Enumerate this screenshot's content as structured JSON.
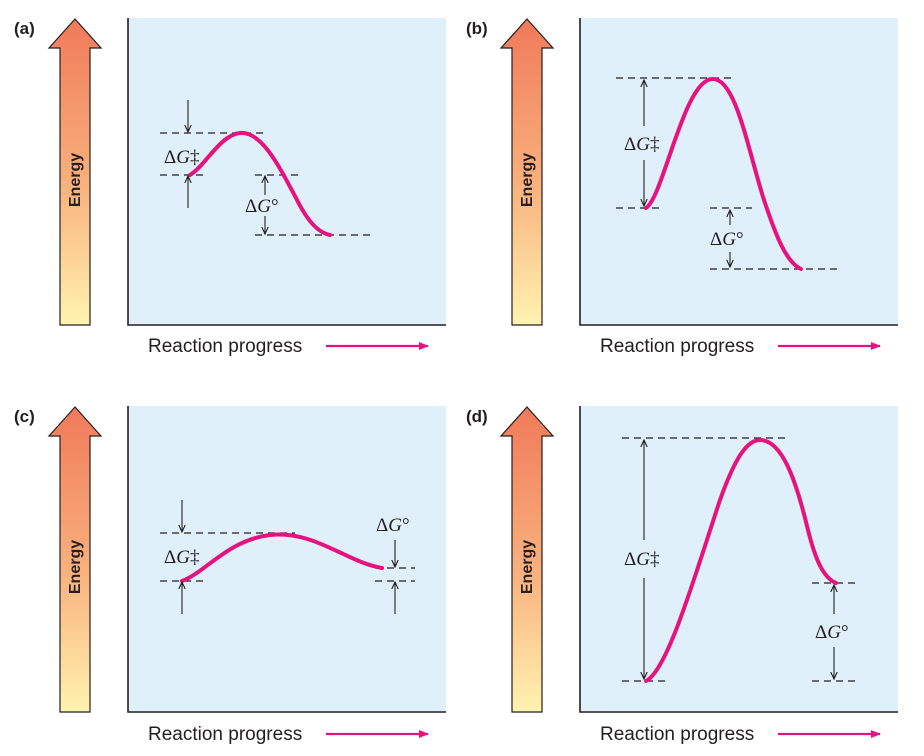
{
  "axis_text": {
    "energy_label": "Energy",
    "x_label": "Reaction progress"
  },
  "colors": {
    "curve": "#e6137f",
    "plot_background": "#dff0fa",
    "arrow_top": "#f07a5a",
    "arrow_bottom": "#fff3b0"
  },
  "panels": [
    {
      "id": "a",
      "label": "(a)",
      "activation_label": "ΔG‡",
      "free_energy_label": "ΔG°"
    },
    {
      "id": "b",
      "label": "(b)",
      "activation_label": "ΔG‡",
      "free_energy_label": "ΔG°"
    },
    {
      "id": "c",
      "label": "(c)",
      "activation_label": "ΔG‡",
      "free_energy_label": "ΔG°"
    },
    {
      "id": "d",
      "label": "(d)",
      "activation_label": "ΔG‡",
      "free_energy_label": "ΔG°"
    }
  ]
}
